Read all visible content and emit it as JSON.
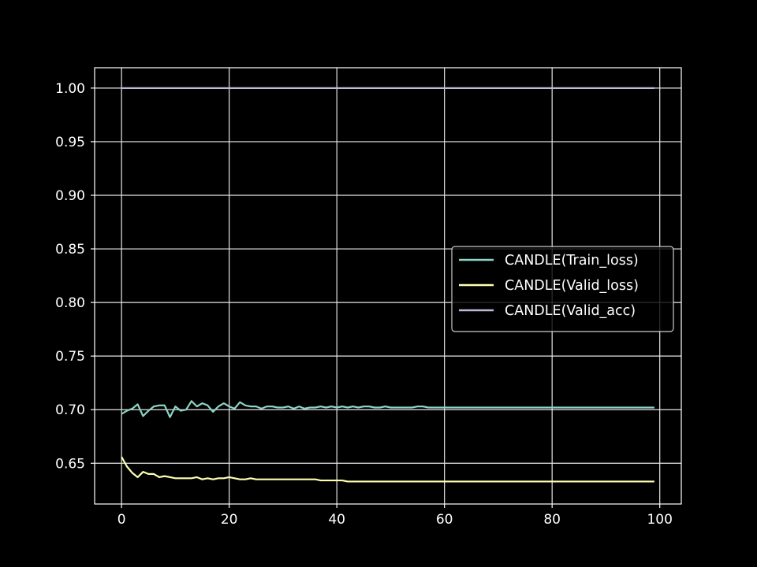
{
  "chart_data": {
    "type": "line",
    "title": "",
    "xlabel": "",
    "ylabel": "",
    "xlim": [
      -5,
      104
    ],
    "ylim": [
      0.612,
      1.019
    ],
    "xticks": [
      0,
      20,
      40,
      60,
      80,
      100
    ],
    "xtick_labels": [
      "0",
      "20",
      "40",
      "60",
      "80",
      "100"
    ],
    "yticks": [
      0.65,
      0.7,
      0.75,
      0.8,
      0.85,
      0.9,
      0.95,
      1.0
    ],
    "ytick_labels": [
      "0.65",
      "0.70",
      "0.75",
      "0.80",
      "0.85",
      "0.90",
      "0.95",
      "1.00"
    ],
    "grid": true,
    "legend_position": "center-right",
    "background": "#000000",
    "foreground": "#ffffff",
    "series": [
      {
        "name": "CANDLE(Train_loss)",
        "color": "#8dd3c7",
        "x": [
          0,
          1,
          2,
          3,
          4,
          5,
          6,
          7,
          8,
          9,
          10,
          11,
          12,
          13,
          14,
          15,
          16,
          17,
          18,
          19,
          20,
          21,
          22,
          23,
          24,
          25,
          26,
          27,
          28,
          29,
          30,
          31,
          32,
          33,
          34,
          35,
          36,
          37,
          38,
          39,
          40,
          41,
          42,
          43,
          44,
          45,
          46,
          47,
          48,
          49,
          50,
          51,
          52,
          53,
          54,
          55,
          56,
          57,
          58,
          59,
          60,
          61,
          62,
          63,
          64,
          65,
          66,
          67,
          68,
          69,
          70,
          71,
          72,
          73,
          74,
          75,
          76,
          77,
          78,
          79,
          80,
          81,
          82,
          83,
          84,
          85,
          86,
          87,
          88,
          89,
          90,
          91,
          92,
          93,
          94,
          95,
          96,
          97,
          98,
          99
        ],
        "y": [
          0.696,
          0.699,
          0.701,
          0.705,
          0.694,
          0.699,
          0.703,
          0.704,
          0.704,
          0.693,
          0.703,
          0.699,
          0.7,
          0.708,
          0.703,
          0.706,
          0.704,
          0.698,
          0.703,
          0.706,
          0.703,
          0.701,
          0.707,
          0.704,
          0.703,
          0.703,
          0.701,
          0.703,
          0.703,
          0.702,
          0.702,
          0.703,
          0.701,
          0.703,
          0.701,
          0.702,
          0.702,
          0.703,
          0.702,
          0.703,
          0.702,
          0.703,
          0.702,
          0.703,
          0.702,
          0.703,
          0.703,
          0.702,
          0.702,
          0.703,
          0.702,
          0.702,
          0.702,
          0.702,
          0.702,
          0.703,
          0.703,
          0.702,
          0.702,
          0.702,
          0.702,
          0.702,
          0.702,
          0.702,
          0.702,
          0.702,
          0.702,
          0.702,
          0.702,
          0.702,
          0.702,
          0.702,
          0.702,
          0.702,
          0.702,
          0.702,
          0.702,
          0.702,
          0.702,
          0.702,
          0.702,
          0.702,
          0.702,
          0.702,
          0.702,
          0.702,
          0.702,
          0.702,
          0.702,
          0.702,
          0.702,
          0.702,
          0.702,
          0.702,
          0.702,
          0.702,
          0.702,
          0.702,
          0.702,
          0.702
        ]
      },
      {
        "name": "CANDLE(Valid_loss)",
        "color": "#ffffb3",
        "x": [
          0,
          1,
          2,
          3,
          4,
          5,
          6,
          7,
          8,
          9,
          10,
          11,
          12,
          13,
          14,
          15,
          16,
          17,
          18,
          19,
          20,
          21,
          22,
          23,
          24,
          25,
          26,
          27,
          28,
          29,
          30,
          31,
          32,
          33,
          34,
          35,
          36,
          37,
          38,
          39,
          40,
          41,
          42,
          43,
          44,
          45,
          46,
          47,
          48,
          49,
          50,
          51,
          52,
          53,
          54,
          55,
          56,
          57,
          58,
          59,
          60,
          61,
          62,
          63,
          64,
          65,
          66,
          67,
          68,
          69,
          70,
          71,
          72,
          73,
          74,
          75,
          76,
          77,
          78,
          79,
          80,
          81,
          82,
          83,
          84,
          85,
          86,
          87,
          88,
          89,
          90,
          91,
          92,
          93,
          94,
          95,
          96,
          97,
          98,
          99
        ],
        "y": [
          0.656,
          0.647,
          0.641,
          0.637,
          0.642,
          0.64,
          0.64,
          0.637,
          0.638,
          0.637,
          0.636,
          0.636,
          0.636,
          0.636,
          0.637,
          0.635,
          0.636,
          0.635,
          0.636,
          0.636,
          0.637,
          0.636,
          0.635,
          0.635,
          0.636,
          0.635,
          0.635,
          0.635,
          0.635,
          0.635,
          0.635,
          0.635,
          0.635,
          0.635,
          0.635,
          0.635,
          0.635,
          0.634,
          0.634,
          0.634,
          0.634,
          0.634,
          0.633,
          0.633,
          0.633,
          0.633,
          0.633,
          0.633,
          0.633,
          0.633,
          0.633,
          0.633,
          0.633,
          0.633,
          0.633,
          0.633,
          0.633,
          0.633,
          0.633,
          0.633,
          0.633,
          0.633,
          0.633,
          0.633,
          0.633,
          0.633,
          0.633,
          0.633,
          0.633,
          0.633,
          0.633,
          0.633,
          0.633,
          0.633,
          0.633,
          0.633,
          0.633,
          0.633,
          0.633,
          0.633,
          0.633,
          0.633,
          0.633,
          0.633,
          0.633,
          0.633,
          0.633,
          0.633,
          0.633,
          0.633,
          0.633,
          0.633,
          0.633,
          0.633,
          0.633,
          0.633,
          0.633,
          0.633,
          0.633,
          0.633
        ]
      },
      {
        "name": "CANDLE(Valid_acc)",
        "color": "#bebada",
        "x": [
          0,
          99
        ],
        "y": [
          1.0,
          1.0
        ]
      }
    ]
  }
}
